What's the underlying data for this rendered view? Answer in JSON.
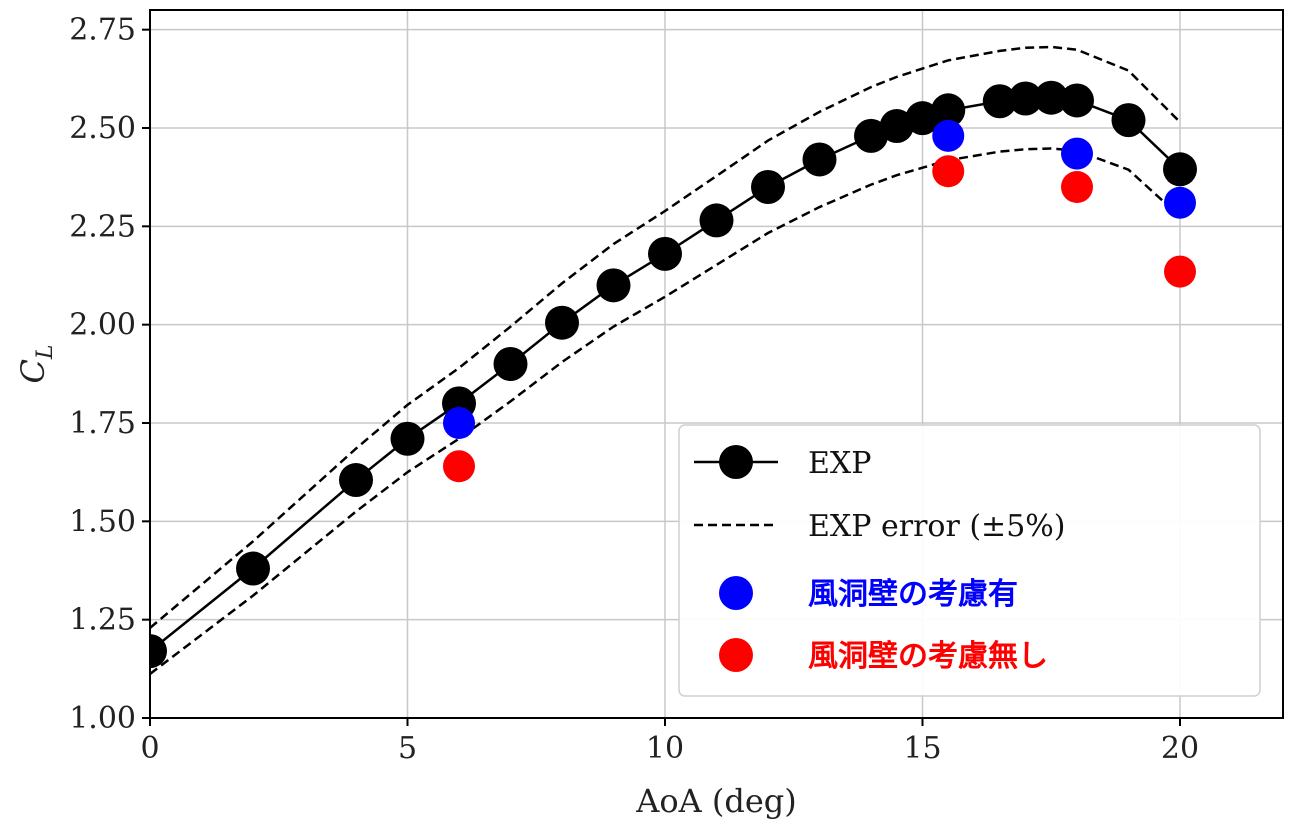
{
  "chart_data": {
    "type": "line",
    "xlabel": "AoA (deg)",
    "ylabel": "C",
    "ylabel_sub": "L",
    "xlim": [
      0,
      22
    ],
    "ylim": [
      1.0,
      2.8
    ],
    "xticks": [
      0,
      5,
      10,
      15,
      20
    ],
    "xtick_labels": [
      "0",
      "5",
      "10",
      "15",
      "20"
    ],
    "yticks": [
      1.0,
      1.25,
      1.5,
      1.75,
      2.0,
      2.25,
      2.5,
      2.75
    ],
    "ytick_labels": [
      "1.00",
      "1.25",
      "1.50",
      "1.75",
      "2.00",
      "2.25",
      "2.50",
      "2.75"
    ],
    "grid": true,
    "legend_position": "lower-right",
    "series": [
      {
        "name": "EXP",
        "style": "line-marker",
        "color": "#000000",
        "x": [
          0,
          2,
          4,
          5,
          6,
          7,
          8,
          9,
          10,
          11,
          12,
          13,
          14,
          14.5,
          15,
          15.5,
          16.5,
          17,
          17.5,
          18,
          19,
          20
        ],
        "y": [
          1.17,
          1.38,
          1.605,
          1.71,
          1.8,
          1.9,
          2.005,
          2.1,
          2.18,
          2.265,
          2.35,
          2.42,
          2.48,
          2.505,
          2.525,
          2.545,
          2.568,
          2.575,
          2.577,
          2.57,
          2.52,
          2.395
        ]
      },
      {
        "name": "EXP error (±5%)",
        "style": "dashed",
        "color": "#000000",
        "x": [
          0,
          2,
          4,
          5,
          6,
          7,
          8,
          9,
          10,
          11,
          12,
          13,
          14,
          14.5,
          15,
          15.5,
          16.5,
          17,
          17.5,
          18,
          19,
          20
        ],
        "y_upper": [
          1.229,
          1.449,
          1.685,
          1.796,
          1.89,
          1.995,
          2.105,
          2.205,
          2.289,
          2.378,
          2.468,
          2.541,
          2.604,
          2.63,
          2.651,
          2.672,
          2.696,
          2.704,
          2.706,
          2.699,
          2.646,
          2.515
        ],
        "y_lower": [
          1.112,
          1.311,
          1.525,
          1.625,
          1.71,
          1.805,
          1.905,
          1.995,
          2.071,
          2.152,
          2.233,
          2.299,
          2.356,
          2.38,
          2.399,
          2.418,
          2.44,
          2.446,
          2.448,
          2.442,
          2.394,
          2.275
        ]
      },
      {
        "name": "風洞壁の考慮有",
        "style": "marker",
        "color": "#0000ff",
        "x": [
          6,
          15.5,
          18,
          20
        ],
        "y": [
          1.75,
          2.48,
          2.435,
          2.31
        ]
      },
      {
        "name": "風洞壁の考慮無し",
        "style": "marker",
        "color": "#ff0000",
        "x": [
          6,
          15.5,
          18,
          20
        ],
        "y": [
          1.64,
          2.39,
          2.35,
          2.135
        ]
      }
    ]
  }
}
